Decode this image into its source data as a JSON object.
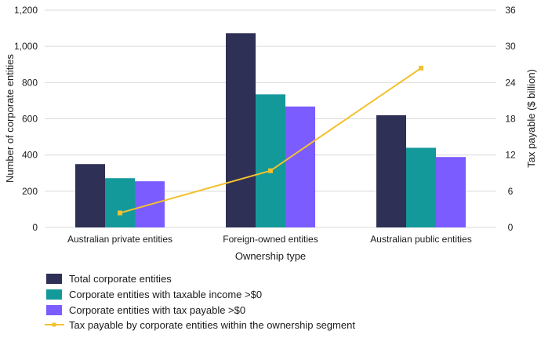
{
  "chart_data": {
    "type": "bar",
    "categories": [
      "Australian private entities",
      "Foreign-owned entities",
      "Australian public entities"
    ],
    "series": [
      {
        "name": "Total corporate entities",
        "values": [
          350,
          1073,
          620
        ],
        "color": "#2e3056"
      },
      {
        "name": "Corporate entities with taxable income >$0",
        "values": [
          272,
          735,
          440
        ],
        "color": "#14999b"
      },
      {
        "name": "Corporate entities with tax payable >$0",
        "values": [
          255,
          668,
          389
        ],
        "color": "#7b5cff"
      }
    ],
    "line_series": {
      "name": "Tax payable by corporate entities within the ownership segment",
      "values": [
        2.4,
        9.4,
        26.4
      ],
      "color": "#f2c12e",
      "axis": "right"
    },
    "xlabel": "Ownership type",
    "ylabel": "Number of corporate entities",
    "ylabel_right": "Tax payable ($ billion)",
    "ylim": [
      0,
      1200
    ],
    "ylim_right": [
      0,
      36
    ],
    "yticks": [
      "0",
      "200",
      "400",
      "600",
      "800",
      "1,000",
      "1,200"
    ],
    "yticks_right": [
      "0",
      "6",
      "12",
      "18",
      "24",
      "30",
      "36"
    ],
    "grid": true,
    "legend_position": "bottom"
  }
}
